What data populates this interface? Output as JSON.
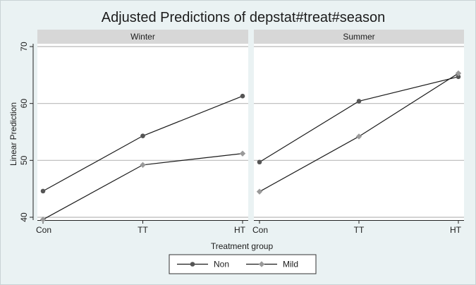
{
  "chart_data": {
    "type": "line",
    "title": "Adjusted Predictions of depstat#treat#season",
    "xlabel": "Treatment group",
    "ylabel": "Linear Prediction",
    "categories": [
      "Con",
      "TT",
      "HT"
    ],
    "ylim": [
      39.5,
      70.5
    ],
    "yticks": [
      40,
      50,
      60,
      70
    ],
    "grid": true,
    "legend_position": "bottom",
    "series_colors": {
      "Non": "#555555",
      "Mild": "#9a9a9a"
    },
    "panels": [
      {
        "label": "Winter",
        "series": [
          {
            "name": "Non",
            "values": [
              44.6,
              54.3,
              61.3
            ]
          },
          {
            "name": "Mild",
            "values": [
              39.6,
              49.2,
              51.2
            ]
          }
        ]
      },
      {
        "label": "Summer",
        "series": [
          {
            "name": "Non",
            "values": [
              49.7,
              60.4,
              64.7
            ]
          },
          {
            "name": "Mild",
            "values": [
              44.5,
              54.2,
              65.3
            ]
          }
        ]
      }
    ],
    "legend": [
      "Non",
      "Mild"
    ]
  }
}
